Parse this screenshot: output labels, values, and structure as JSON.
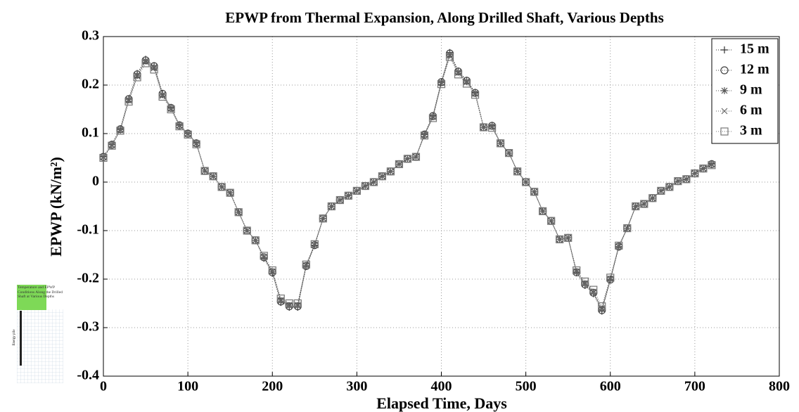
{
  "chart_data": {
    "type": "line",
    "title": "EPWP from Thermal Expansion, Along Drilled Shaft, Various Depths",
    "x_label": "Elapsed Time, Days",
    "y_label": "EPWP (kN/m²)",
    "x": [
      0,
      10,
      20,
      30,
      40,
      50,
      60,
      70,
      80,
      90,
      100,
      110,
      120,
      130,
      140,
      150,
      160,
      170,
      180,
      190,
      200,
      210,
      220,
      230,
      240,
      250,
      260,
      270,
      280,
      290,
      300,
      310,
      320,
      330,
      340,
      350,
      360,
      370,
      380,
      390,
      400,
      410,
      420,
      430,
      440,
      450,
      460,
      470,
      480,
      490,
      500,
      510,
      520,
      530,
      540,
      550,
      560,
      570,
      580,
      590,
      600,
      610,
      620,
      630,
      640,
      650,
      660,
      670,
      680,
      690,
      700,
      710,
      720
    ],
    "series": [
      {
        "name": "15 m",
        "color": "#333333",
        "marker": "plus",
        "values": [
          0.053,
          0.078,
          0.11,
          0.172,
          0.224,
          0.253,
          0.24,
          0.183,
          0.154,
          0.118,
          0.101,
          0.081,
          0.023,
          0.012,
          -0.01,
          -0.022,
          -0.062,
          -0.1,
          -0.12,
          -0.157,
          -0.188,
          -0.248,
          -0.258,
          -0.258,
          -0.174,
          -0.131,
          -0.075,
          -0.05,
          -0.037,
          -0.028,
          -0.018,
          -0.008,
          0,
          0.012,
          0.022,
          0.037,
          0.048,
          0.052,
          0.099,
          0.137,
          0.207,
          0.267,
          0.229,
          0.21,
          0.185,
          0.113,
          0.117,
          0.08,
          0.06,
          0.022,
          0,
          -0.02,
          -0.06,
          -0.08,
          -0.118,
          -0.115,
          -0.187,
          -0.213,
          -0.23,
          -0.266,
          -0.202,
          -0.134,
          -0.095,
          -0.05,
          -0.045,
          -0.033,
          -0.018,
          -0.01,
          0.002,
          0.006,
          0.018,
          0.028,
          0.038
        ]
      },
      {
        "name": "12 m",
        "color": "#444444",
        "marker": "circle",
        "values": [
          0.052,
          0.077,
          0.109,
          0.171,
          0.222,
          0.251,
          0.239,
          0.182,
          0.153,
          0.117,
          0.1,
          0.08,
          0.023,
          0.012,
          -0.01,
          -0.022,
          -0.062,
          -0.1,
          -0.12,
          -0.155,
          -0.186,
          -0.246,
          -0.256,
          -0.256,
          -0.173,
          -0.13,
          -0.075,
          -0.05,
          -0.037,
          -0.028,
          -0.018,
          -0.008,
          0,
          0.012,
          0.022,
          0.037,
          0.048,
          0.052,
          0.098,
          0.136,
          0.206,
          0.265,
          0.228,
          0.209,
          0.184,
          0.113,
          0.116,
          0.08,
          0.06,
          0.022,
          0,
          -0.02,
          -0.06,
          -0.08,
          -0.118,
          -0.115,
          -0.186,
          -0.211,
          -0.228,
          -0.264,
          -0.201,
          -0.133,
          -0.095,
          -0.05,
          -0.045,
          -0.033,
          -0.018,
          -0.01,
          0.002,
          0.006,
          0.018,
          0.028,
          0.037
        ]
      },
      {
        "name": "9 m",
        "color": "#555555",
        "marker": "star",
        "values": [
          0.052,
          0.077,
          0.108,
          0.17,
          0.22,
          0.25,
          0.237,
          0.18,
          0.152,
          0.117,
          0.1,
          0.08,
          0.023,
          0.012,
          -0.01,
          -0.022,
          -0.062,
          -0.1,
          -0.12,
          -0.155,
          -0.185,
          -0.245,
          -0.255,
          -0.255,
          -0.172,
          -0.13,
          -0.075,
          -0.05,
          -0.037,
          -0.028,
          -0.018,
          -0.008,
          0,
          0.012,
          0.022,
          0.037,
          0.048,
          0.052,
          0.098,
          0.135,
          0.205,
          0.263,
          0.227,
          0.208,
          0.183,
          0.113,
          0.115,
          0.08,
          0.06,
          0.022,
          0,
          -0.02,
          -0.06,
          -0.08,
          -0.118,
          -0.115,
          -0.185,
          -0.21,
          -0.228,
          -0.262,
          -0.2,
          -0.133,
          -0.095,
          -0.05,
          -0.045,
          -0.033,
          -0.018,
          -0.01,
          0.002,
          0.006,
          0.018,
          0.028,
          0.037
        ]
      },
      {
        "name": "6 m",
        "color": "#666666",
        "marker": "x",
        "values": [
          0.051,
          0.076,
          0.107,
          0.168,
          0.218,
          0.248,
          0.235,
          0.178,
          0.151,
          0.116,
          0.099,
          0.079,
          0.023,
          0.012,
          -0.01,
          -0.022,
          -0.062,
          -0.1,
          -0.12,
          -0.154,
          -0.184,
          -0.243,
          -0.253,
          -0.253,
          -0.171,
          -0.129,
          -0.075,
          -0.05,
          -0.037,
          -0.028,
          -0.018,
          -0.008,
          0,
          0.012,
          0.022,
          0.037,
          0.048,
          0.052,
          0.097,
          0.134,
          0.204,
          0.261,
          0.225,
          0.206,
          0.182,
          0.113,
          0.114,
          0.08,
          0.06,
          0.022,
          0,
          -0.02,
          -0.06,
          -0.08,
          -0.118,
          -0.115,
          -0.184,
          -0.208,
          -0.226,
          -0.26,
          -0.199,
          -0.132,
          -0.095,
          -0.05,
          -0.045,
          -0.033,
          -0.018,
          -0.01,
          0.002,
          0.006,
          0.018,
          0.028,
          0.036
        ]
      },
      {
        "name": "3 m",
        "color": "#777777",
        "marker": "square",
        "values": [
          0.05,
          0.075,
          0.106,
          0.166,
          0.216,
          0.245,
          0.232,
          0.176,
          0.15,
          0.115,
          0.098,
          0.078,
          0.023,
          0.012,
          -0.01,
          -0.022,
          -0.062,
          -0.1,
          -0.12,
          -0.152,
          -0.182,
          -0.24,
          -0.25,
          -0.25,
          -0.17,
          -0.128,
          -0.075,
          -0.05,
          -0.037,
          -0.028,
          -0.018,
          -0.008,
          0,
          0.012,
          0.022,
          0.037,
          0.048,
          0.052,
          0.096,
          0.132,
          0.202,
          0.258,
          0.222,
          0.203,
          0.18,
          0.113,
          0.112,
          0.08,
          0.06,
          0.022,
          0,
          -0.02,
          -0.06,
          -0.08,
          -0.118,
          -0.115,
          -0.182,
          -0.205,
          -0.222,
          -0.256,
          -0.197,
          -0.131,
          -0.095,
          -0.05,
          -0.045,
          -0.033,
          -0.018,
          -0.01,
          0.002,
          0.006,
          0.018,
          0.028,
          0.035
        ]
      }
    ],
    "xlim": [
      0,
      800
    ],
    "xticks": [
      0,
      100,
      200,
      300,
      400,
      500,
      600,
      700,
      800
    ],
    "ylim": [
      -0.4,
      0.3
    ],
    "yticks": [
      -0.4,
      -0.3,
      -0.2,
      -0.1,
      0,
      0.1,
      0.2,
      0.3
    ],
    "grid": true,
    "legend": "upper right"
  },
  "inset": {
    "title": "Temperature and EPWP Conditions Along the Drilled Shaft at Various Depths",
    "label": "Energy pile"
  }
}
